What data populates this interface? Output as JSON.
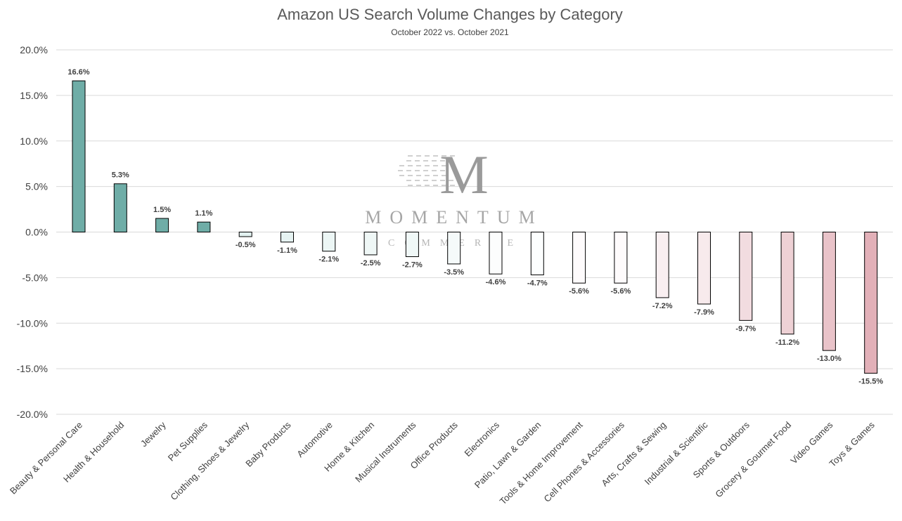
{
  "chart_data": {
    "type": "bar",
    "title": "Amazon US Search Volume Changes by Category",
    "subtitle": "October 2022 vs. October 2021",
    "xlabel": "",
    "ylabel": "",
    "ylim": [
      -20,
      20
    ],
    "yticks": [
      20,
      15,
      10,
      5,
      0,
      -5,
      -10,
      -15,
      -20
    ],
    "ytick_labels": [
      "20.0%",
      "15.0%",
      "10.0%",
      "5.0%",
      "0.0%",
      "-5.0%",
      "-10.0%",
      "-15.0%",
      "-20.0%"
    ],
    "grid": true,
    "categories": [
      "Beauty & Personal Care",
      "Health & Household",
      "Jewelry",
      "Pet Supplies",
      "Clothing, Shoes & Jewelry",
      "Baby Products",
      "Automotive",
      "Home & Kitchen",
      "Musical Instruments",
      "Office Products",
      "Electronics",
      "Patio, Lawn & Garden",
      "Tools & Home Improvement",
      "Cell Phones & Accessories",
      "Arts, Crafts & Sewing",
      "Industrial & Scientific",
      "Sports & Outdoors",
      "Grocery & Gourmet Food",
      "Video Games",
      "Toys & Games"
    ],
    "values": [
      16.6,
      5.3,
      1.5,
      1.1,
      -0.5,
      -1.1,
      -2.1,
      -2.5,
      -2.7,
      -3.5,
      -4.6,
      -4.7,
      -5.6,
      -5.6,
      -7.2,
      -7.9,
      -9.7,
      -11.2,
      -13.0,
      -15.5
    ],
    "value_labels": [
      "16.6%",
      "5.3%",
      "1.5%",
      "1.1%",
      "-0.5%",
      "-1.1%",
      "-2.1%",
      "-2.5%",
      "-2.7%",
      "-3.5%",
      "-4.6%",
      "-4.7%",
      "-5.6%",
      "-5.6%",
      "-7.2%",
      "-7.9%",
      "-9.7%",
      "-11.2%",
      "-13.0%",
      "-15.5%"
    ],
    "colors": {
      "positive_max": "#6fada7",
      "negative_min": "#dff0ee",
      "negative_neutral": "#ffffff",
      "negative_max": "#e2b0b8",
      "bar_outline": "#000000",
      "grid": "#d9d9d9",
      "text": "#404040"
    }
  },
  "watermark": {
    "letter": "M",
    "word": "MOMENTUM",
    "subword": "COMMERCE"
  }
}
